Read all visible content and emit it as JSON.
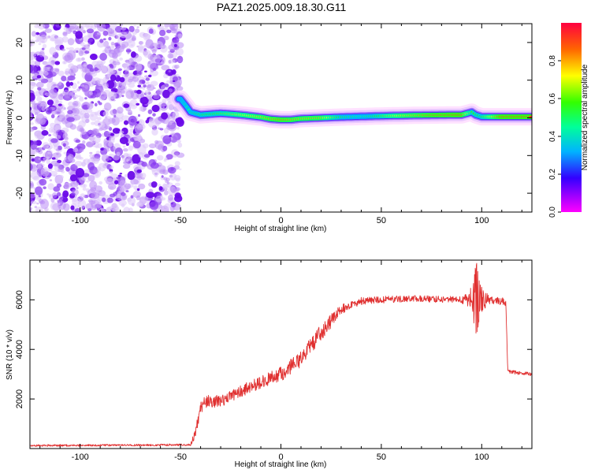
{
  "title": "PAZ1.2025.009.18.30.G11",
  "colors": {
    "snr_line": "#e03030",
    "axis": "#000000"
  },
  "chart_data": [
    {
      "type": "heatmap",
      "xlabel": "Height of straight line (km)",
      "ylabel": "Frequency (Hz)",
      "xlim": [
        -125,
        125
      ],
      "ylim": [
        -25,
        25
      ],
      "xticks": [
        -100,
        -50,
        0,
        50,
        100
      ],
      "yticks": [
        -20,
        -10,
        0,
        10,
        20
      ],
      "xtick_labels": [
        "-100",
        "-50",
        "0",
        "50",
        "100"
      ],
      "ytick_labels": [
        "-20",
        "-10",
        "0",
        "10",
        "20"
      ],
      "colorbar": {
        "label": "Normalized spectral amplitude",
        "range": [
          0,
          1
        ],
        "ticks": [
          0,
          0.2,
          0.4,
          0.6,
          0.8
        ],
        "tick_labels": [
          "0.0",
          "0.2",
          "0.4",
          "0.6",
          "0.8"
        ]
      },
      "noise_region_x": [
        -125,
        -48
      ],
      "ridge": [
        [
          -50,
          5
        ],
        [
          -47,
          3
        ],
        [
          -45,
          1.5
        ],
        [
          -40,
          0.8
        ],
        [
          -30,
          1.2
        ],
        [
          -20,
          0.8
        ],
        [
          -15,
          0.5
        ],
        [
          -10,
          0.2
        ],
        [
          -5,
          -0.3
        ],
        [
          0,
          -0.5
        ],
        [
          5,
          -0.5
        ],
        [
          10,
          -0.2
        ],
        [
          20,
          0
        ],
        [
          30,
          0.2
        ],
        [
          50,
          0.5
        ],
        [
          70,
          0.7
        ],
        [
          90,
          0.8
        ],
        [
          95,
          1.5
        ],
        [
          97,
          0.8
        ],
        [
          100,
          0.3
        ],
        [
          110,
          0.3
        ],
        [
          125,
          0.3
        ]
      ],
      "ridge_amplitude": [
        [
          -50,
          0.3
        ],
        [
          -45,
          0.45
        ],
        [
          -40,
          0.55
        ],
        [
          -30,
          0.6
        ],
        [
          -20,
          0.7
        ],
        [
          0,
          0.85
        ],
        [
          10,
          0.8
        ],
        [
          20,
          0.8
        ],
        [
          30,
          0.55
        ],
        [
          40,
          0.45
        ],
        [
          50,
          0.6
        ],
        [
          60,
          0.75
        ],
        [
          75,
          0.85
        ],
        [
          90,
          0.9
        ],
        [
          95,
          0.6
        ],
        [
          100,
          0.55
        ],
        [
          110,
          0.9
        ],
        [
          125,
          0.9
        ]
      ]
    },
    {
      "type": "line",
      "xlabel": "Height of straight line (km)",
      "ylabel": "SNR (10 * v/v)",
      "xlim": [
        -125,
        125
      ],
      "ylim": [
        0,
        7600
      ],
      "xticks": [
        -100,
        -50,
        0,
        50,
        100
      ],
      "yticks": [
        2000,
        4000,
        6000
      ],
      "xtick_labels": [
        "-100",
        "-50",
        "0",
        "50",
        "100"
      ],
      "ytick_labels": [
        "2000",
        "4000",
        "6000"
      ],
      "series": [
        {
          "trend": [
            [
              -125,
              120
            ],
            [
              -45,
              150
            ],
            [
              -42,
              800
            ],
            [
              -40,
              1600
            ],
            [
              -38,
              1900
            ],
            [
              -30,
              1900
            ],
            [
              -20,
              2300
            ],
            [
              -10,
              2700
            ],
            [
              0,
              3000
            ],
            [
              10,
              3600
            ],
            [
              20,
              4700
            ],
            [
              30,
              5600
            ],
            [
              40,
              5950
            ],
            [
              50,
              6000
            ],
            [
              70,
              6050
            ],
            [
              90,
              6000
            ],
            [
              95,
              6050
            ],
            [
              100,
              6000
            ],
            [
              110,
              5950
            ],
            [
              112,
              5850
            ],
            [
              113,
              3100
            ],
            [
              125,
              3000
            ]
          ],
          "noise_amplitude": [
            [
              -125,
              40
            ],
            [
              -45,
              40
            ],
            [
              -42,
              300
            ],
            [
              -38,
              250
            ],
            [
              -20,
              250
            ],
            [
              0,
              300
            ],
            [
              20,
              350
            ],
            [
              35,
              150
            ],
            [
              90,
              130
            ],
            [
              94,
              400
            ],
            [
              96,
              1600
            ],
            [
              98,
              1400
            ],
            [
              101,
              400
            ],
            [
              105,
              150
            ],
            [
              112,
              150
            ],
            [
              113,
              80
            ],
            [
              125,
              80
            ]
          ]
        }
      ]
    }
  ]
}
